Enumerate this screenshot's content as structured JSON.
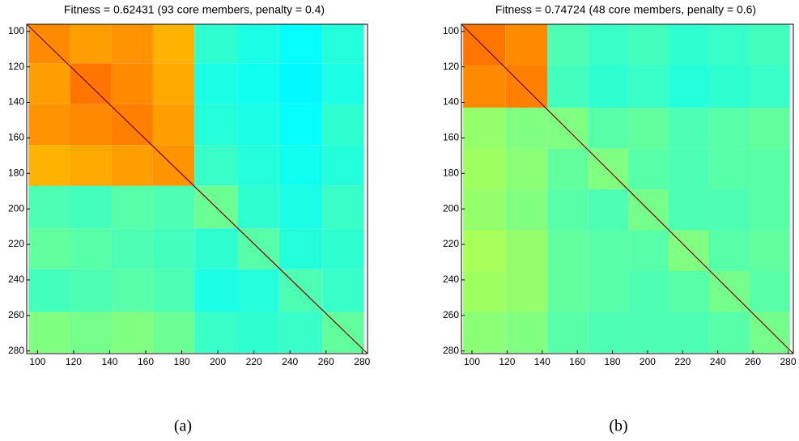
{
  "chart_data": [
    {
      "type": "heatmap",
      "title": "Fitness = 0.62431 (93 core members, penalty = 0.4)",
      "xbins": [
        95,
        118,
        141,
        164,
        187,
        211,
        234,
        258,
        281
      ],
      "ybins": [
        95,
        118,
        141,
        164,
        187,
        211,
        234,
        258,
        281
      ],
      "values": [
        [
          0.74,
          0.72,
          0.73,
          0.7,
          0.42,
          0.4,
          0.38,
          0.41
        ],
        [
          0.72,
          0.76,
          0.74,
          0.71,
          0.4,
          0.39,
          0.37,
          0.4
        ],
        [
          0.73,
          0.74,
          0.75,
          0.72,
          0.41,
          0.4,
          0.38,
          0.42
        ],
        [
          0.7,
          0.71,
          0.72,
          0.73,
          0.43,
          0.41,
          0.39,
          0.41
        ],
        [
          0.45,
          0.44,
          0.46,
          0.45,
          0.48,
          0.42,
          0.4,
          0.43
        ],
        [
          0.47,
          0.46,
          0.45,
          0.44,
          0.42,
          0.46,
          0.41,
          0.42
        ],
        [
          0.44,
          0.45,
          0.46,
          0.45,
          0.4,
          0.41,
          0.45,
          0.43
        ],
        [
          0.5,
          0.49,
          0.5,
          0.48,
          0.43,
          0.42,
          0.43,
          0.47
        ]
      ],
      "clim": [
        0,
        1
      ],
      "colormap": "jet",
      "xlim": [
        94,
        283
      ],
      "ylim": [
        96,
        281.5
      ],
      "y_inverted": true,
      "xticks": [
        100,
        120,
        140,
        160,
        180,
        200,
        220,
        240,
        260,
        280
      ],
      "yticks": [
        100,
        120,
        140,
        160,
        180,
        200,
        220,
        240,
        260,
        280
      ]
    },
    {
      "type": "heatmap",
      "title": "Fitness = 0.74724 (48 core members, penalty = 0.6)",
      "xbins": [
        95,
        119,
        143,
        166,
        189,
        212,
        235,
        258,
        281
      ],
      "ybins": [
        95,
        119,
        143,
        166,
        189,
        212,
        235,
        258,
        281
      ],
      "values": [
        [
          0.76,
          0.74,
          0.45,
          0.43,
          0.44,
          0.42,
          0.43,
          0.44
        ],
        [
          0.74,
          0.75,
          0.44,
          0.42,
          0.43,
          0.41,
          0.42,
          0.43
        ],
        [
          0.52,
          0.5,
          0.5,
          0.46,
          0.47,
          0.45,
          0.46,
          0.47
        ],
        [
          0.53,
          0.51,
          0.47,
          0.5,
          0.46,
          0.45,
          0.46,
          0.46
        ],
        [
          0.52,
          0.5,
          0.46,
          0.45,
          0.49,
          0.45,
          0.45,
          0.46
        ],
        [
          0.54,
          0.52,
          0.47,
          0.46,
          0.46,
          0.5,
          0.46,
          0.47
        ],
        [
          0.53,
          0.52,
          0.47,
          0.46,
          0.45,
          0.46,
          0.49,
          0.46
        ],
        [
          0.51,
          0.5,
          0.46,
          0.45,
          0.45,
          0.45,
          0.46,
          0.49
        ]
      ],
      "clim": [
        0,
        1
      ],
      "colormap": "jet",
      "xlim": [
        94,
        283
      ],
      "ylim": [
        96,
        281.5
      ],
      "y_inverted": true,
      "xticks": [
        100,
        120,
        140,
        160,
        180,
        200,
        220,
        240,
        260,
        280
      ],
      "yticks": [
        100,
        120,
        140,
        160,
        180,
        200,
        220,
        240,
        260,
        280
      ]
    }
  ],
  "captions": [
    "(a)",
    "(b)"
  ]
}
